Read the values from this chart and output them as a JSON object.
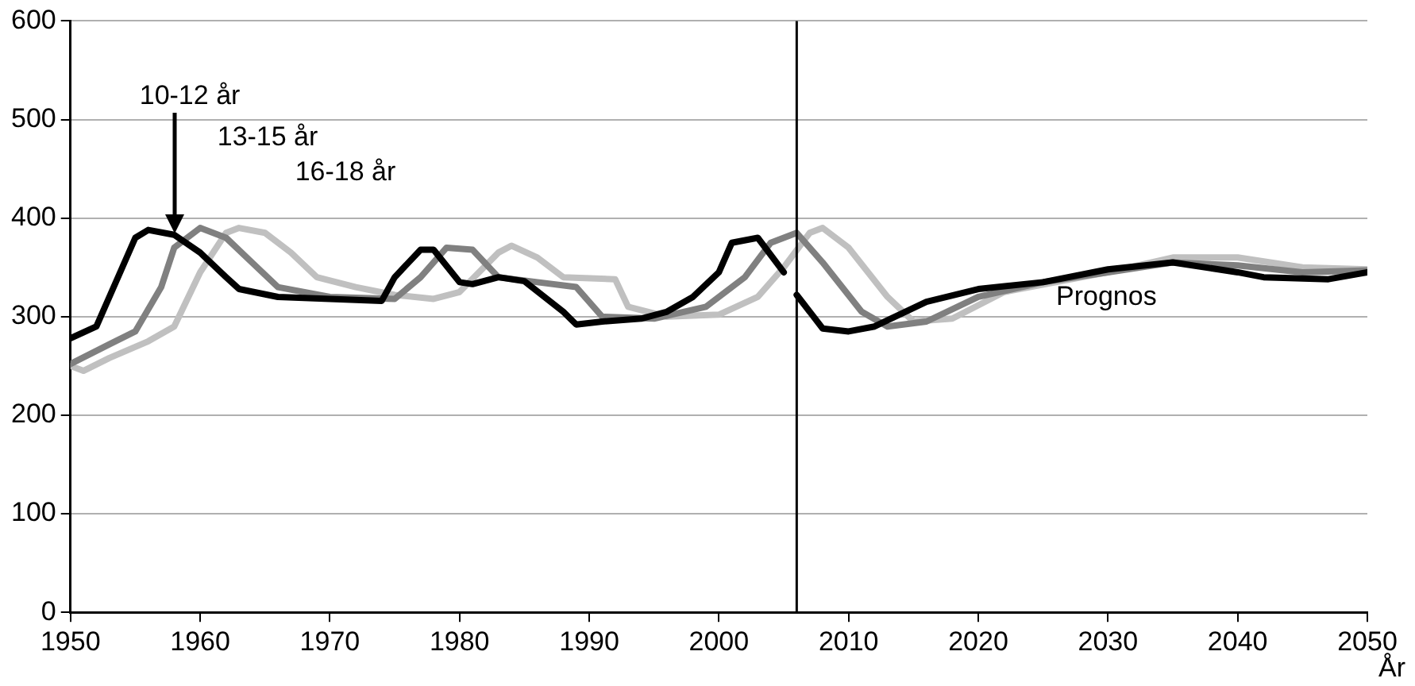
{
  "chart_data": {
    "type": "line",
    "xlabel": "År",
    "xlim": [
      1950,
      2050
    ],
    "xticks": [
      1950,
      1960,
      1970,
      1980,
      1990,
      2000,
      2010,
      2020,
      2030,
      2040,
      2050
    ],
    "ylim": [
      0,
      600
    ],
    "yticks": [
      0,
      100,
      200,
      300,
      400,
      500,
      600
    ],
    "grid": "y",
    "legend": false,
    "marker": "none",
    "line_style": "solid",
    "series": [
      {
        "name": "10-12 år",
        "color": "#000000",
        "x": [
          1950,
          1952,
          1954,
          1955,
          1956,
          1958,
          1960,
          1962,
          1963,
          1966,
          1970,
          1974,
          1975,
          1977,
          1978,
          1980,
          1981,
          1983,
          1985,
          1988,
          1989,
          1991,
          1994,
          1996,
          1998,
          2000,
          2001,
          2003,
          2005,
          2005.5,
          2006,
          2008,
          2010,
          2012,
          2016,
          2020,
          2025,
          2030,
          2035,
          2040,
          2042,
          2047,
          2050
        ],
        "values": [
          278,
          290,
          350,
          380,
          388,
          383,
          365,
          340,
          328,
          320,
          318,
          316,
          340,
          368,
          368,
          335,
          333,
          340,
          336,
          305,
          292,
          295,
          298,
          305,
          320,
          345,
          375,
          380,
          345,
          null,
          322,
          288,
          285,
          290,
          315,
          328,
          335,
          348,
          355,
          345,
          340,
          338,
          345
        ]
      },
      {
        "name": "13-15 år",
        "color": "#808080",
        "x": [
          1950,
          1953,
          1955,
          1957,
          1958,
          1960,
          1962,
          1964,
          1966,
          1970,
          1975,
          1977,
          1979,
          1981,
          1983,
          1986,
          1989,
          1991,
          1995,
          1999,
          2002,
          2004,
          2006,
          2008,
          2011,
          2013,
          2016,
          2020,
          2025,
          2030,
          2035,
          2040,
          2045,
          2050
        ],
        "values": [
          252,
          272,
          285,
          330,
          370,
          390,
          380,
          355,
          330,
          320,
          318,
          340,
          370,
          368,
          340,
          335,
          330,
          300,
          298,
          310,
          340,
          375,
          385,
          355,
          305,
          290,
          295,
          320,
          335,
          345,
          355,
          352,
          345,
          347
        ]
      },
      {
        "name": "16-18 år",
        "color": "#c0c0c0",
        "x": [
          1950,
          1951,
          1953,
          1956,
          1958,
          1960,
          1962,
          1963,
          1965,
          1967,
          1969,
          1972,
          1975,
          1978,
          1980,
          1983,
          1984,
          1986,
          1988,
          1992,
          1993,
          1996,
          2000,
          2003,
          2005,
          2007,
          2008,
          2010,
          2013,
          2015,
          2018,
          2022,
          2030,
          2035,
          2040,
          2045,
          2050
        ],
        "values": [
          250,
          245,
          258,
          275,
          290,
          345,
          385,
          390,
          385,
          365,
          340,
          330,
          322,
          318,
          325,
          365,
          372,
          360,
          340,
          338,
          310,
          300,
          302,
          320,
          350,
          385,
          390,
          370,
          320,
          295,
          298,
          325,
          345,
          360,
          360,
          350,
          348
        ]
      }
    ],
    "ref_lines": [
      {
        "axis": "x",
        "value": 2006,
        "color": "#000000"
      }
    ],
    "annotations": [
      "Prognos"
    ]
  }
}
